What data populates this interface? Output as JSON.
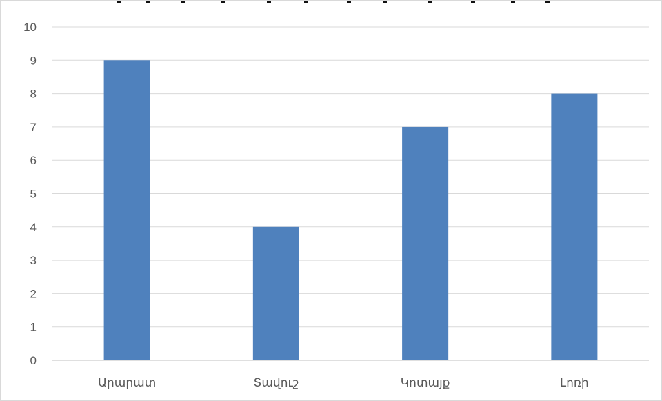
{
  "chart_data": {
    "type": "bar",
    "categories": [
      "Արարատ",
      "Տավուշ",
      "Կոտայք",
      "Լոռի"
    ],
    "values": [
      9,
      4,
      7,
      8
    ],
    "ylim": [
      0,
      10
    ],
    "yticks": [
      0,
      1,
      2,
      3,
      4,
      5,
      6,
      7,
      8,
      9,
      10
    ],
    "grid": true,
    "legend": "none",
    "colors": {
      "bar": "#4f81bd",
      "grid": "#d9d9d9",
      "axis": "#bfbfbf",
      "text": "#595959"
    }
  }
}
